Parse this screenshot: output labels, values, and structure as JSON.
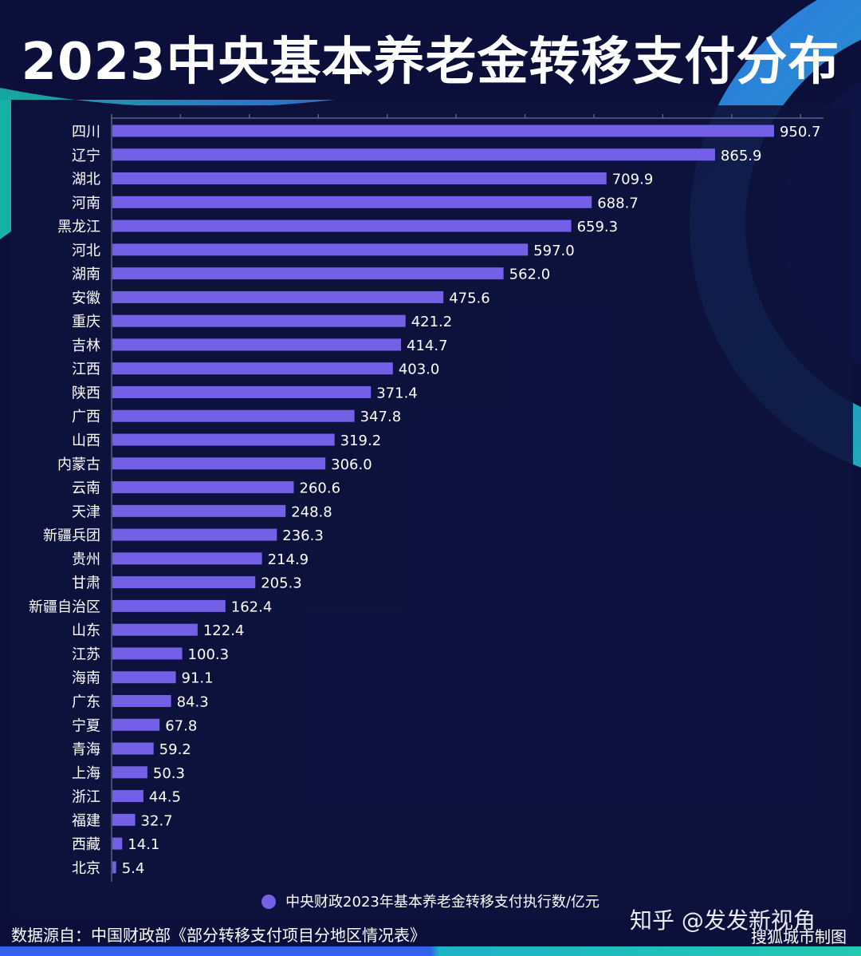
{
  "page": {
    "title": "2023中央基本养老金转移支付分布",
    "legend_label": "中央财政2023年基本养老金转移支付执行数/亿元",
    "source": "数据源自：中国财政部《部分转移支付项目分地区情况表》",
    "credit": "搜狐城市制图",
    "watermark": "知乎 @发发新视角"
  },
  "colors": {
    "background": "#0b0f3a",
    "bar": "#7360e6",
    "accent_teal": "#16c2b2",
    "accent_blue": "#2f7fe8"
  },
  "chart_data": {
    "type": "bar",
    "orientation": "horizontal",
    "categories": [
      "四川",
      "辽宁",
      "湖北",
      "河南",
      "黑龙江",
      "河北",
      "湖南",
      "安徽",
      "重庆",
      "吉林",
      "江西",
      "陕西",
      "广西",
      "山西",
      "内蒙古",
      "云南",
      "天津",
      "新疆兵团",
      "贵州",
      "甘肃",
      "新疆自治区",
      "山东",
      "江苏",
      "海南",
      "广东",
      "宁夏",
      "青海",
      "上海",
      "浙江",
      "福建",
      "西藏",
      "北京"
    ],
    "values": [
      950.7,
      865.9,
      709.9,
      688.7,
      659.3,
      597.0,
      562.0,
      475.6,
      421.2,
      414.7,
      403.0,
      371.4,
      347.8,
      319.2,
      306.0,
      260.6,
      248.8,
      236.3,
      214.9,
      205.3,
      162.4,
      122.4,
      100.3,
      91.1,
      84.3,
      67.8,
      59.2,
      50.3,
      44.5,
      32.7,
      14.1,
      5.4
    ],
    "value_labels": [
      "950.7",
      "865.9",
      "709.9",
      "688.7",
      "659.3",
      "597.0",
      "562.0",
      "475.6",
      "421.2",
      "414.7",
      "403.0",
      "371.4",
      "347.8",
      "319.2",
      "306.0",
      "260.6",
      "248.8",
      "236.3",
      "214.9",
      "205.3",
      "162.4",
      "122.4",
      "100.3",
      "91.1",
      "84.3",
      "67.8",
      "59.2",
      "50.3",
      "44.5",
      "32.7",
      "14.1",
      "5.4"
    ],
    "series": [
      {
        "name": "中央财政2023年基本养老金转移支付执行数/亿元"
      }
    ],
    "xlim": [
      0,
      1000
    ],
    "grid": false,
    "legend_position": "bottom"
  }
}
